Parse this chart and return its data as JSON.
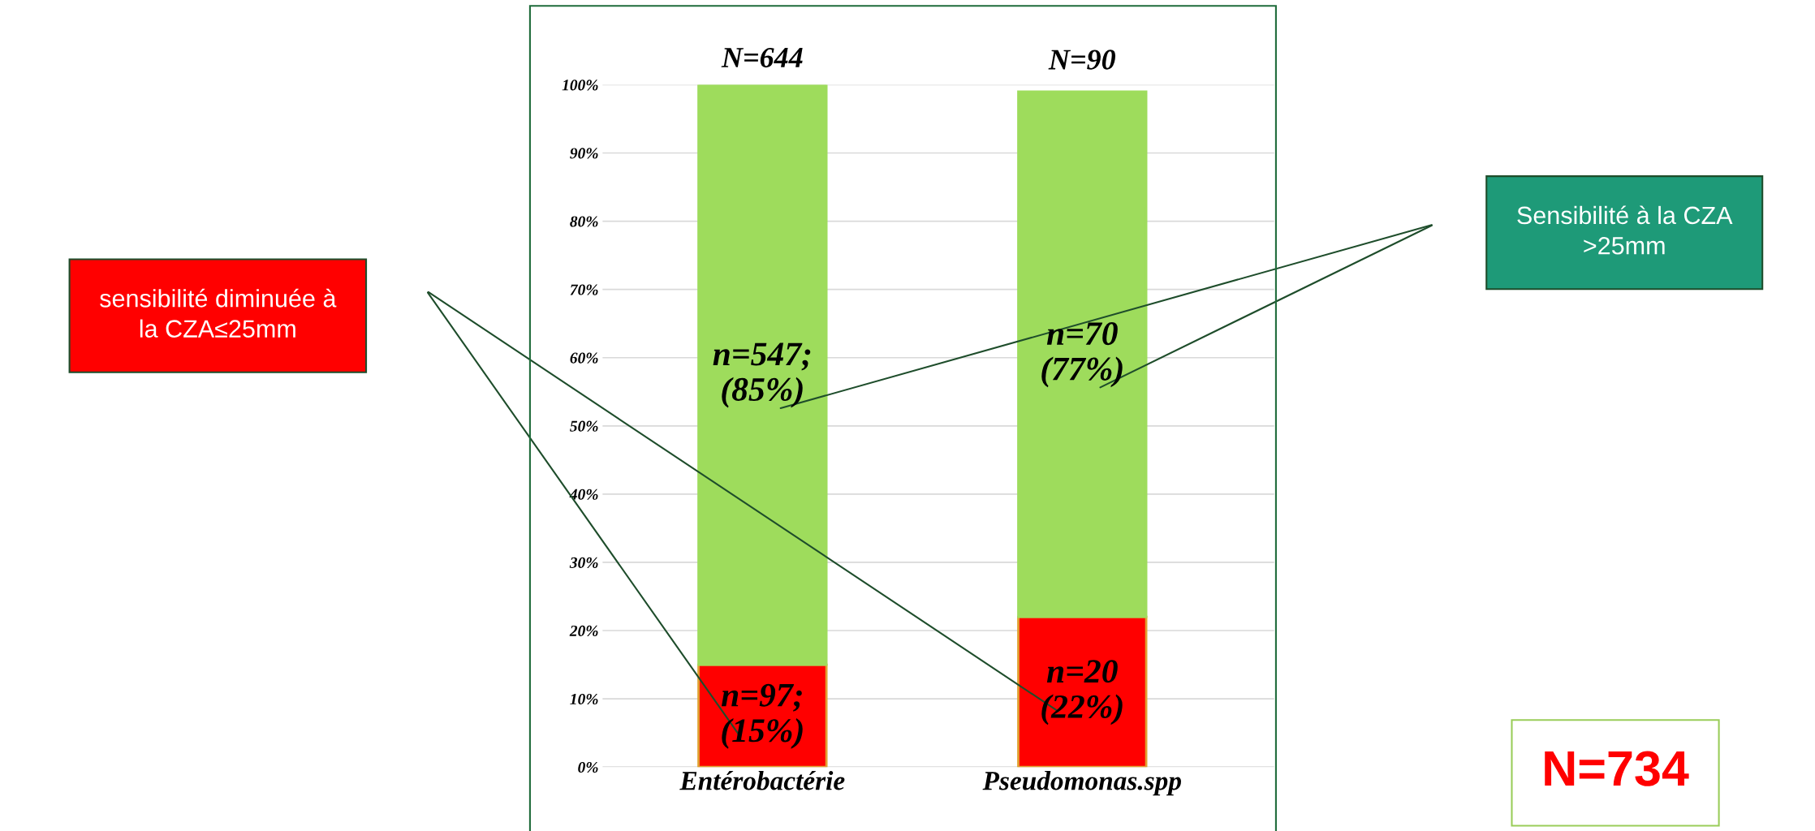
{
  "chart_data": {
    "type": "bar",
    "stacked": true,
    "categories": [
      "Entérobactérie",
      "Pseudomonas.spp"
    ],
    "series": [
      {
        "color": "#ff0000",
        "values": [
          15,
          22
        ],
        "value_labels": [
          "n=97;\n(15%)",
          "n=20\n(22%)"
        ]
      },
      {
        "color": "#9edc5c",
        "values": [
          85,
          77
        ],
        "value_labels": [
          "n=547;\n(85%)",
          "n=70\n(77%)"
        ]
      }
    ],
    "ylim": [
      0,
      100
    ],
    "yticks": [
      {
        "value": 0,
        "label": "0%"
      },
      {
        "value": 10,
        "label": "10%"
      },
      {
        "value": 20,
        "label": "20%"
      },
      {
        "value": 30,
        "label": "30%"
      },
      {
        "value": 40,
        "label": "40%"
      },
      {
        "value": 50,
        "label": "50%"
      },
      {
        "value": 60,
        "label": "60%"
      },
      {
        "value": 70,
        "label": "70%"
      },
      {
        "value": 80,
        "label": "80%"
      },
      {
        "value": 90,
        "label": "90%"
      },
      {
        "value": 100,
        "label": "100%"
      }
    ],
    "grid": "y",
    "annotations": [
      "sensibilité diminuée à la CZA≤25mm",
      "Sensibilité à la CZA >25mm",
      "N=734",
      {
        "text": "N=644",
        "x": "Entérobactérie",
        "y": 100
      },
      {
        "text": "N=90",
        "x": "Pseudomonas.spp",
        "y": 99
      }
    ]
  }
}
